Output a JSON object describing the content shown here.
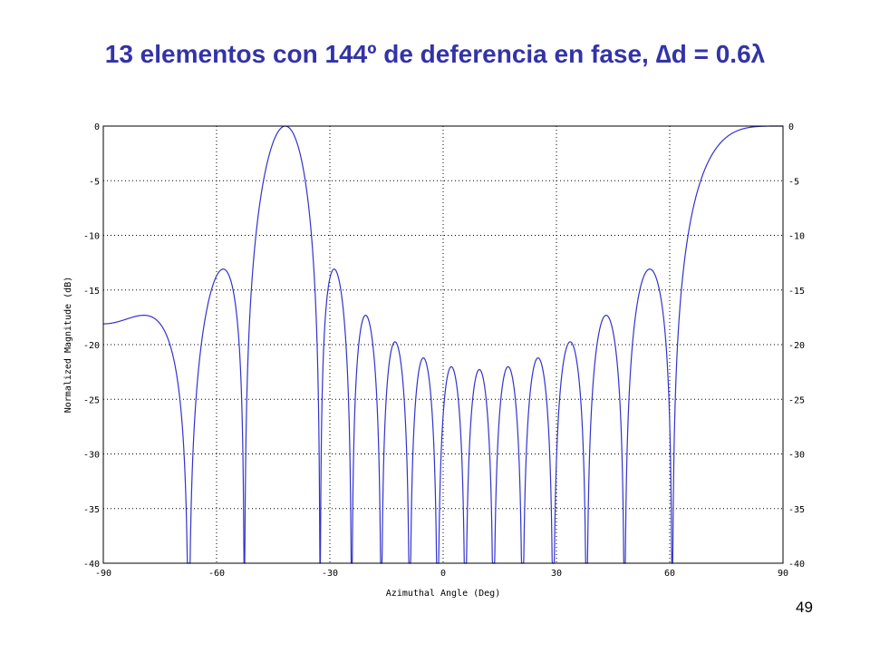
{
  "slide": {
    "title": "13 elementos con 144º de deferencia en fase, ∆d = 0.6λ",
    "page_number": "49"
  },
  "chart_data": {
    "type": "line",
    "xlabel": "Azimuthal Angle (Deg)",
    "ylabel": "Normalized Magnitude (dB)",
    "xlim": [
      -90,
      90
    ],
    "ylim": [
      -40,
      0
    ],
    "x_ticks": [
      -90,
      -60,
      -30,
      0,
      30,
      60,
      90
    ],
    "y_ticks": [
      0,
      -5,
      -10,
      -15,
      -20,
      -25,
      -30,
      -35,
      -40
    ],
    "grid": true,
    "secondary_y_axis": true,
    "series": [
      {
        "color": "#3333cc",
        "n_elements": 13,
        "element_spacing_wavelengths": 0.6,
        "phase_shift_deg": 144,
        "floor_db": -40
      }
    ]
  }
}
